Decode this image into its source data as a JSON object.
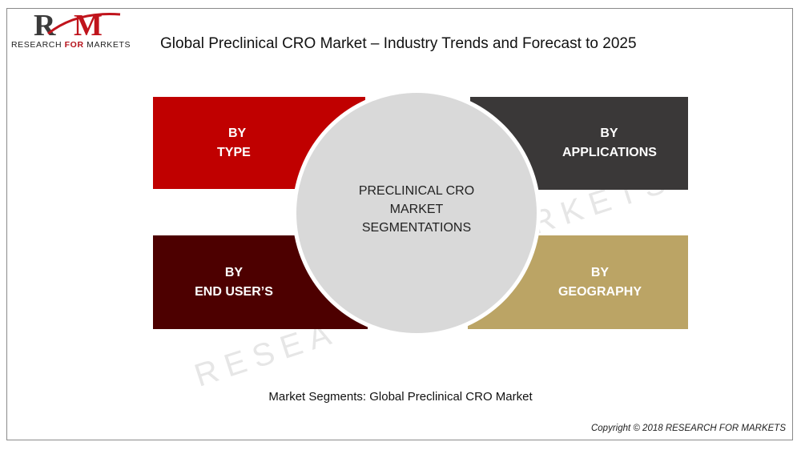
{
  "logo": {
    "prefix": "RESEARCH ",
    "for": "FOR",
    "suffix": " MARKETS"
  },
  "title": "Global Preclinical CRO Market – Industry Trends and Forecast to 2025",
  "center": {
    "line1": "PRECLINICAL CRO",
    "line2": "MARKET",
    "line3": "SEGMENTATIONS"
  },
  "segments": {
    "type": {
      "line1": "BY",
      "line2": "TYPE",
      "color": "#c00000"
    },
    "applications": {
      "line1": "BY",
      "line2": "APPLICATIONS",
      "color": "#3a3838"
    },
    "end_users": {
      "line1": "BY",
      "line2": "END USER’S",
      "color": "#4d0000"
    },
    "geography": {
      "line1": "BY",
      "line2": "GEOGRAPHY",
      "color": "#bba465"
    }
  },
  "caption": "Market Segments: Global Preclinical CRO Market",
  "copyright": "Copyright © 2018 RESEARCH FOR MARKETS"
}
